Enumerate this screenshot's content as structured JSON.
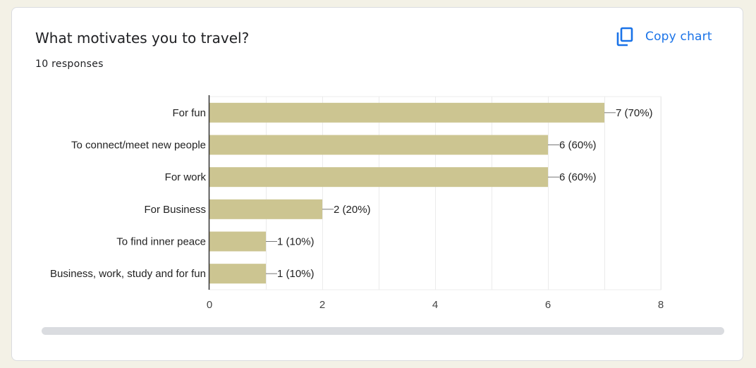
{
  "question": {
    "title": "What motivates you to travel?",
    "response_count": "10 responses"
  },
  "toolbar": {
    "copy_label": "Copy chart",
    "copy_icon": "copy-icon"
  },
  "colors": {
    "bar": "#ccc591",
    "accent": "#1a73e8",
    "scrollbar": "#dadce0"
  },
  "chart_data": {
    "type": "bar",
    "orientation": "horizontal",
    "categories": [
      "For fun",
      "To connect/meet new people",
      "For work",
      "For Business",
      "To find inner peace",
      "Business, work, study and for fun"
    ],
    "values": [
      7,
      6,
      6,
      2,
      1,
      1
    ],
    "data_labels": [
      "7 (70%)",
      "6 (60%)",
      "6 (60%)",
      "2 (20%)",
      "1 (10%)",
      "1 (10%)"
    ],
    "xlim": [
      0,
      8
    ],
    "xticks": [
      "0",
      "2",
      "4",
      "6",
      "8"
    ],
    "grid": true,
    "title": "",
    "xlabel": "",
    "ylabel": ""
  }
}
